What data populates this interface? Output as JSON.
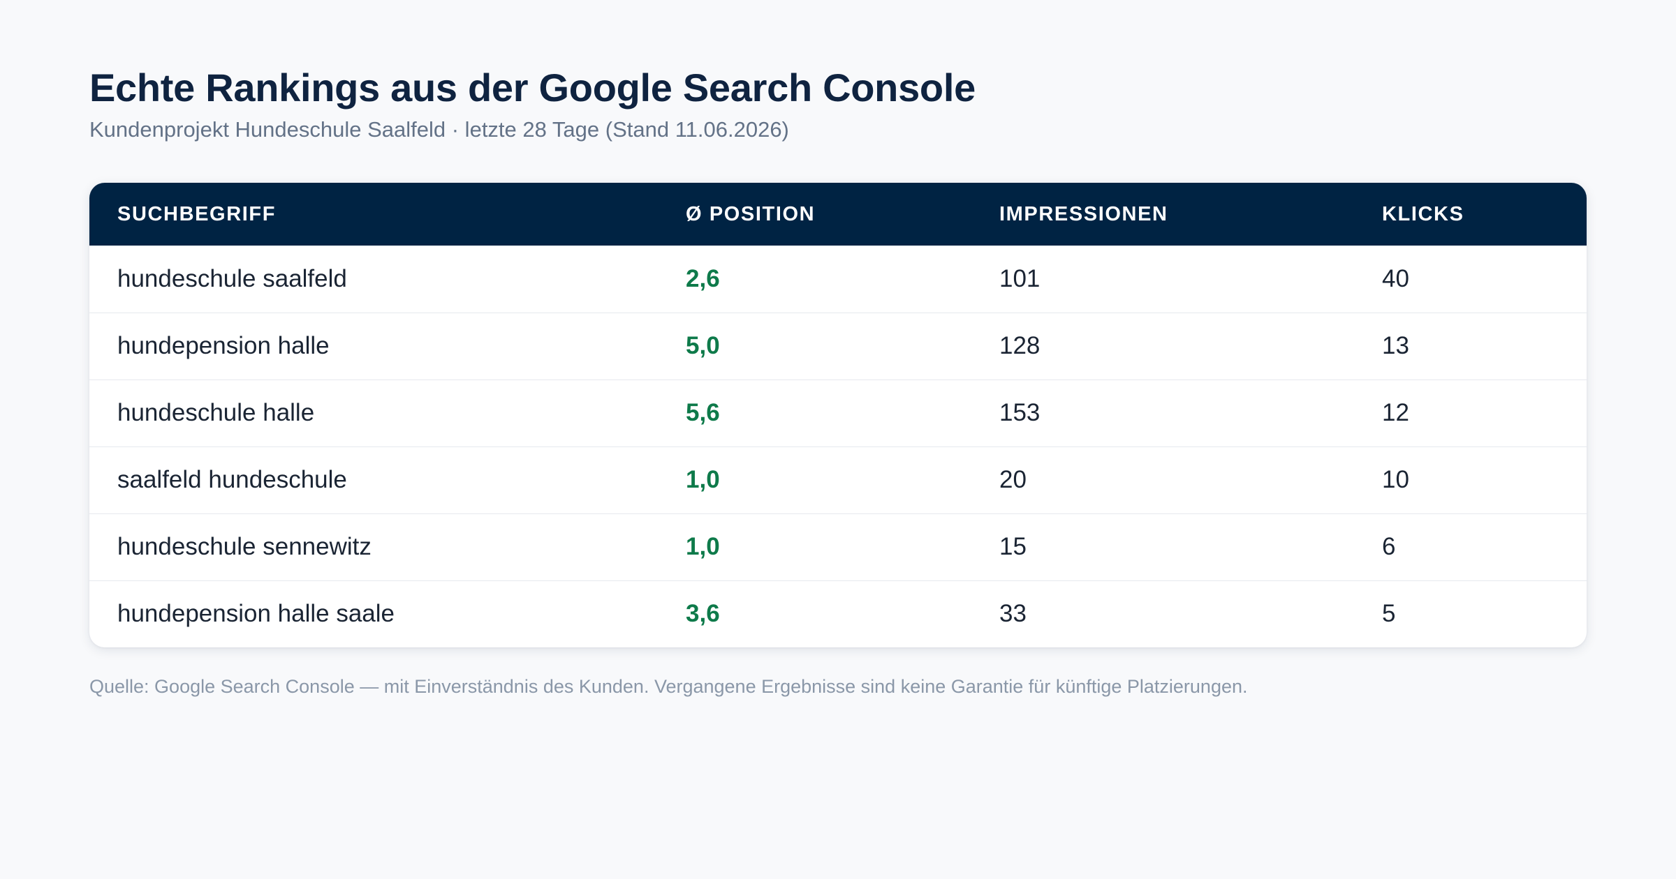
{
  "title": "Echte Rankings aus der Google Search Console",
  "subtitle": "Kundenprojekt Hundeschule Saalfeld · letzte 28 Tage (Stand 11.06.2026)",
  "table": {
    "headers": [
      "Suchbegriff",
      "Ø Position",
      "Impressionen",
      "Klicks"
    ],
    "rows": [
      {
        "term": "hundeschule saalfeld",
        "position": "2,6",
        "impressions": "101",
        "clicks": "40"
      },
      {
        "term": "hundepension halle",
        "position": "5,0",
        "impressions": "128",
        "clicks": "13"
      },
      {
        "term": "hundeschule halle",
        "position": "5,6",
        "impressions": "153",
        "clicks": "12"
      },
      {
        "term": "saalfeld hundeschule",
        "position": "1,0",
        "impressions": "20",
        "clicks": "10"
      },
      {
        "term": "hundeschule sennewitz",
        "position": "1,0",
        "impressions": "15",
        "clicks": "6"
      },
      {
        "term": "hundepension halle saale",
        "position": "3,6",
        "impressions": "33",
        "clicks": "5"
      }
    ]
  },
  "footnote": "Quelle: Google Search Console — mit Einverständnis des Kunden. Vergangene Ergebnisse sind keine Garantie für künftige Platzierungen.",
  "colors": {
    "header_bg": "#002343",
    "position_green": "#0e7a4a",
    "title": "#0f2340"
  }
}
